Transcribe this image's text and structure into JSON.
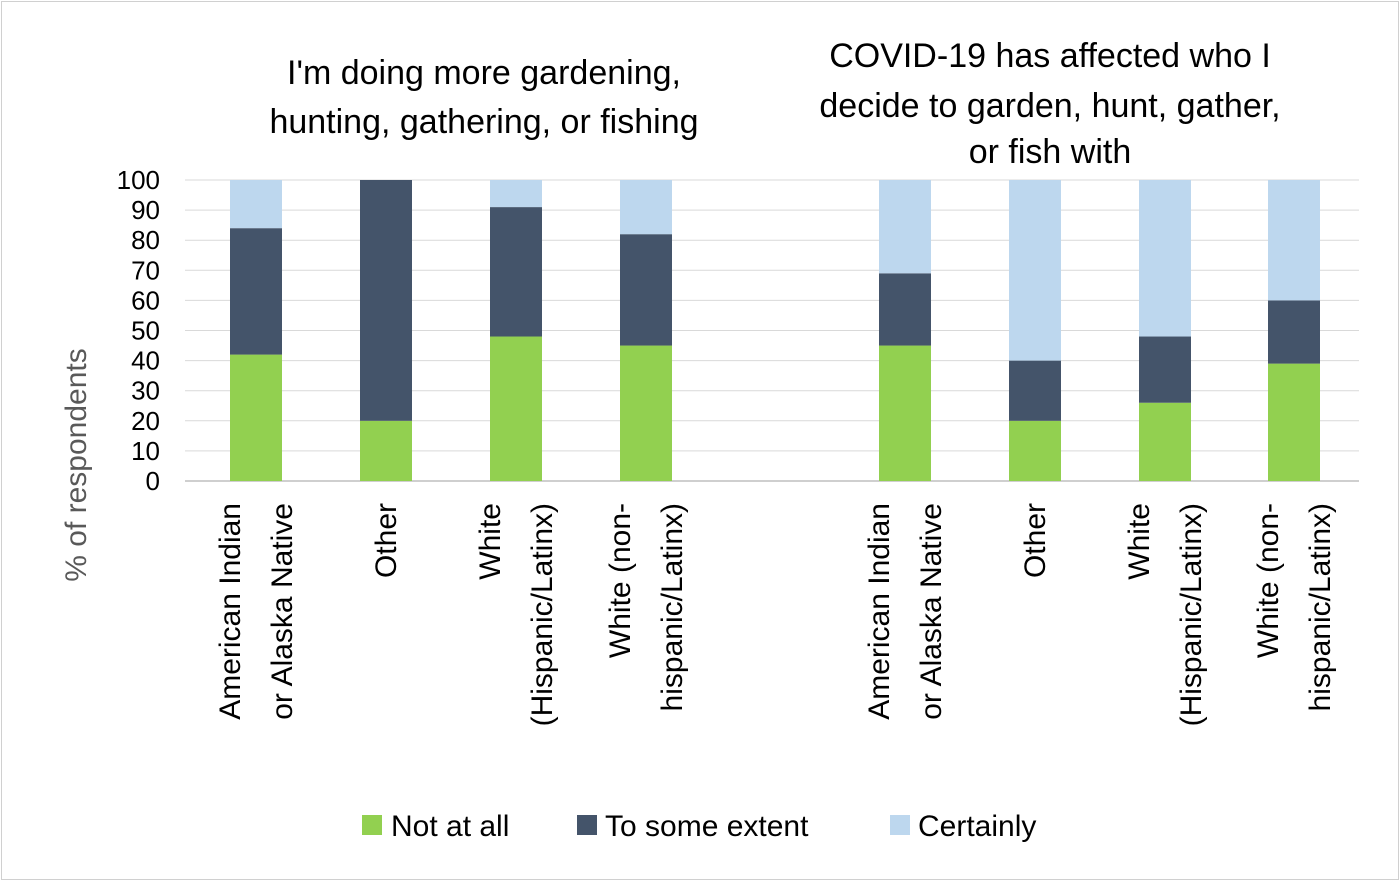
{
  "chart_data": {
    "type": "bar",
    "stacked": true,
    "ylabel": "% of respondents",
    "ylim": [
      0,
      100
    ],
    "yticks": [
      0,
      10,
      20,
      30,
      40,
      50,
      60,
      70,
      80,
      90,
      100
    ],
    "grid": true,
    "legend_position": "bottom",
    "colors": {
      "Not at all": "#92d050",
      "To some extent": "#44546a",
      "Certainly": "#bdd7ee"
    },
    "legend": [
      "Not at all",
      "To some extent",
      "Certainly"
    ],
    "panels": [
      {
        "title_lines": [
          "I'm doing more gardening,",
          "hunting, gathering, or fishing"
        ],
        "categories": [
          [
            "American Indian",
            "or Alaska Native"
          ],
          [
            "Other"
          ],
          [
            "White",
            "(Hispanic/Latinx)"
          ],
          [
            "White (non-",
            "hispanic/Latinx)"
          ]
        ],
        "series": [
          {
            "name": "Not at all",
            "values": [
              42,
              20,
              48,
              45
            ]
          },
          {
            "name": "To some extent",
            "values": [
              42,
              80,
              43,
              37
            ]
          },
          {
            "name": "Certainly",
            "values": [
              16,
              0,
              9,
              18
            ]
          }
        ]
      },
      {
        "title_lines": [
          "COVID-19 has affected who I",
          "decide to garden, hunt, gather,",
          "or fish with"
        ],
        "categories": [
          [
            "American Indian",
            "or Alaska Native"
          ],
          [
            "Other"
          ],
          [
            "White",
            "(Hispanic/Latinx)"
          ],
          [
            "White (non-",
            "hispanic/Latinx)"
          ]
        ],
        "series": [
          {
            "name": "Not at all",
            "values": [
              45,
              20,
              26,
              39
            ]
          },
          {
            "name": "To some extent",
            "values": [
              24,
              20,
              22,
              21
            ]
          },
          {
            "name": "Certainly",
            "values": [
              31,
              60,
              52,
              40
            ]
          }
        ]
      }
    ]
  }
}
